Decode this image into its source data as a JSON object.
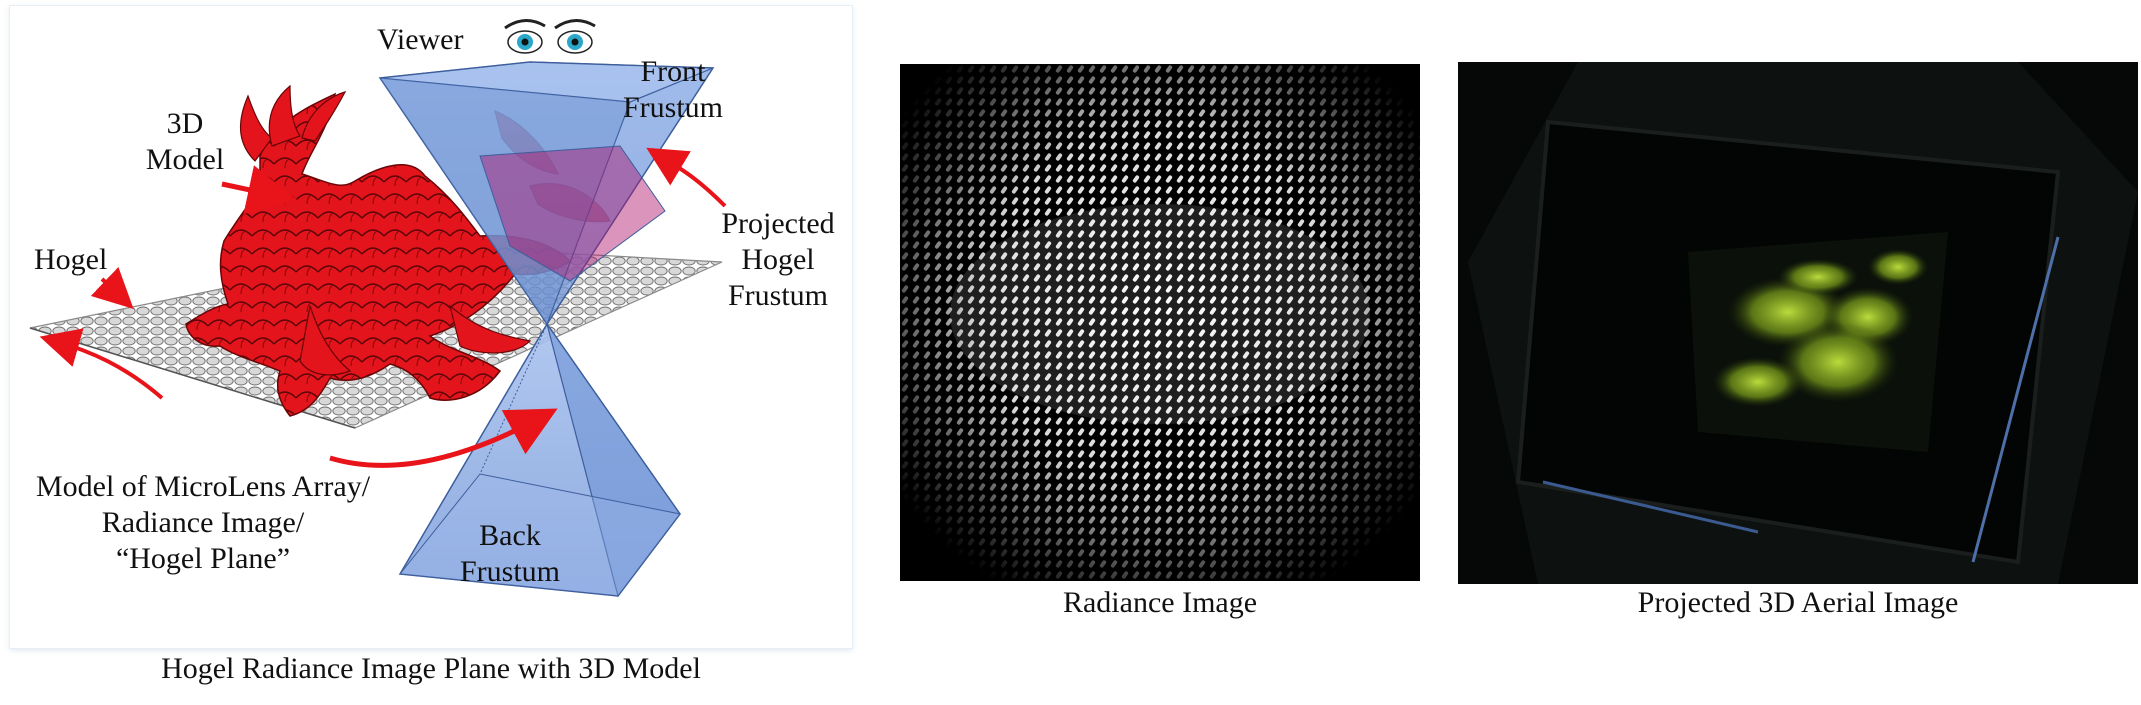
{
  "left_diagram": {
    "labels": {
      "viewer": "Viewer",
      "front_frustum": "Front\nFrustum",
      "model_3d": "3D\nModel",
      "hogel": "Hogel",
      "projected_hogel_frustum": "Projected\nHogel\nFrustum",
      "microlens": "Model of MicroLens Array/\nRadiance Image/\n“Hogel Plane”",
      "back_frustum": "Back\nFrustum"
    },
    "caption": "Hogel Radiance Image Plane with 3D Model",
    "colors": {
      "model": "#e8141a",
      "frustum": "#6d93d6",
      "arrow": "#e8141a",
      "plane": "#c9c9c9"
    }
  },
  "radiance_image": {
    "caption": "Radiance Image"
  },
  "aerial_image": {
    "caption": "Projected 3D Aerial Image",
    "colors": {
      "glow": "#a8d028"
    }
  }
}
